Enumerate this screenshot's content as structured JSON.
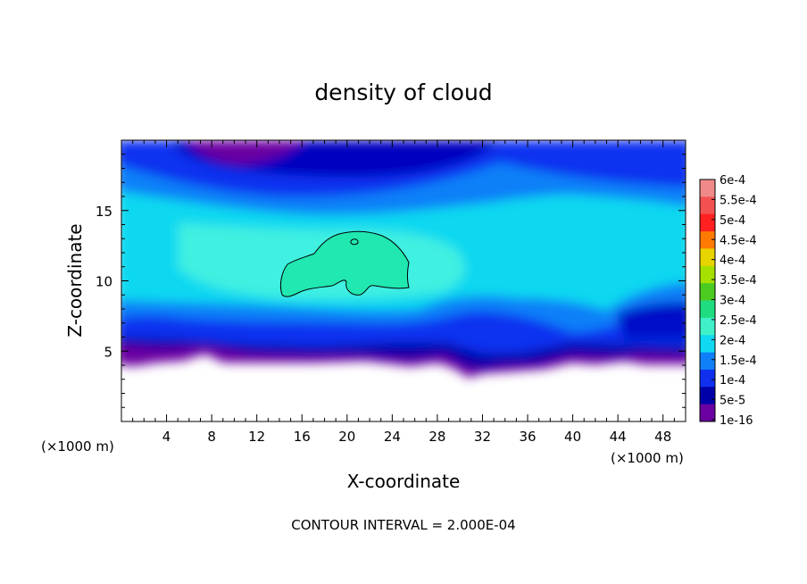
{
  "chart_data": {
    "type": "heatmap",
    "title": "density of cloud",
    "xlabel": "X-coordinate",
    "ylabel": "Z-coordinate",
    "x_unit": "(×1000 m)",
    "y_unit": "(×1000 m)",
    "xlim": [
      0,
      50
    ],
    "ylim": [
      0,
      20
    ],
    "x_ticks": [
      "4",
      "8",
      "12",
      "16",
      "20",
      "24",
      "28",
      "32",
      "36",
      "40",
      "44",
      "48"
    ],
    "y_ticks": [
      "5",
      "10",
      "15"
    ],
    "footer": "CONTOUR INTERVAL = 2.000E-04",
    "colorbar": {
      "labels": [
        "6e-4",
        "5.5e-4",
        "5e-4",
        "4.5e-4",
        "4e-4",
        "3.5e-4",
        "3e-4",
        "2.5e-4",
        "2e-4",
        "1.5e-4",
        "1e-4",
        "5e-5",
        "1e-16"
      ],
      "colors": [
        "#f08a8a",
        "#f35050",
        "#ff2020",
        "#ff7a00",
        "#e8d400",
        "#a6e000",
        "#4ccc20",
        "#20dc80",
        "#40f0c8",
        "#10d8f0",
        "#1080f8",
        "#1030f0",
        "#0000a8",
        "#6a00a0"
      ]
    },
    "max_contour_value": "2e-4"
  }
}
